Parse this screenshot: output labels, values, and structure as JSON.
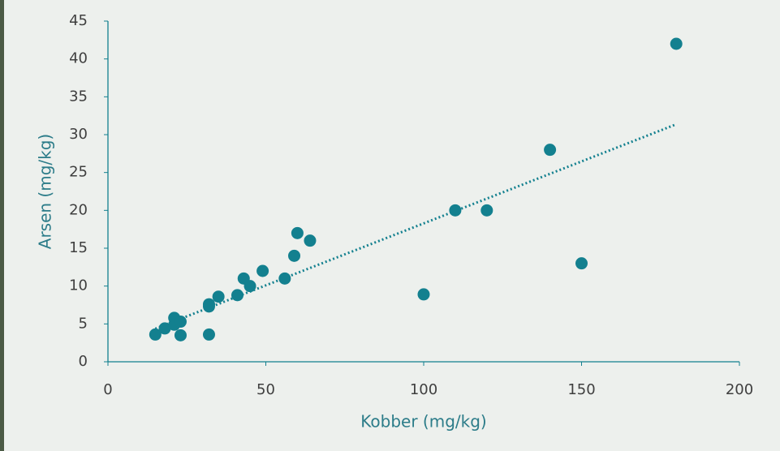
{
  "chart_data": {
    "type": "scatter",
    "x_label": "Kobber (mg/kg)",
    "y_label": "Arsen (mg/kg)",
    "color": "#13808f",
    "trendline": true,
    "x": [
      15,
      18,
      21,
      21,
      23,
      23,
      32,
      32,
      32,
      35,
      41,
      43,
      45,
      49,
      56,
      59,
      60,
      64,
      100,
      110,
      120,
      140,
      150,
      180
    ],
    "values": [
      3.6,
      4.4,
      5.8,
      4.9,
      5.3,
      3.5,
      3.6,
      7.3,
      7.6,
      8.6,
      8.8,
      11,
      10,
      12,
      11,
      14,
      17,
      16,
      8.9,
      20,
      20,
      28,
      13,
      42
    ],
    "xlim": [
      0,
      200
    ],
    "xticks": [
      0,
      50,
      100,
      150,
      200
    ],
    "ylim": [
      0,
      45
    ],
    "yticks": [
      0,
      5,
      10,
      15,
      20,
      25,
      30,
      35,
      40,
      45
    ]
  }
}
